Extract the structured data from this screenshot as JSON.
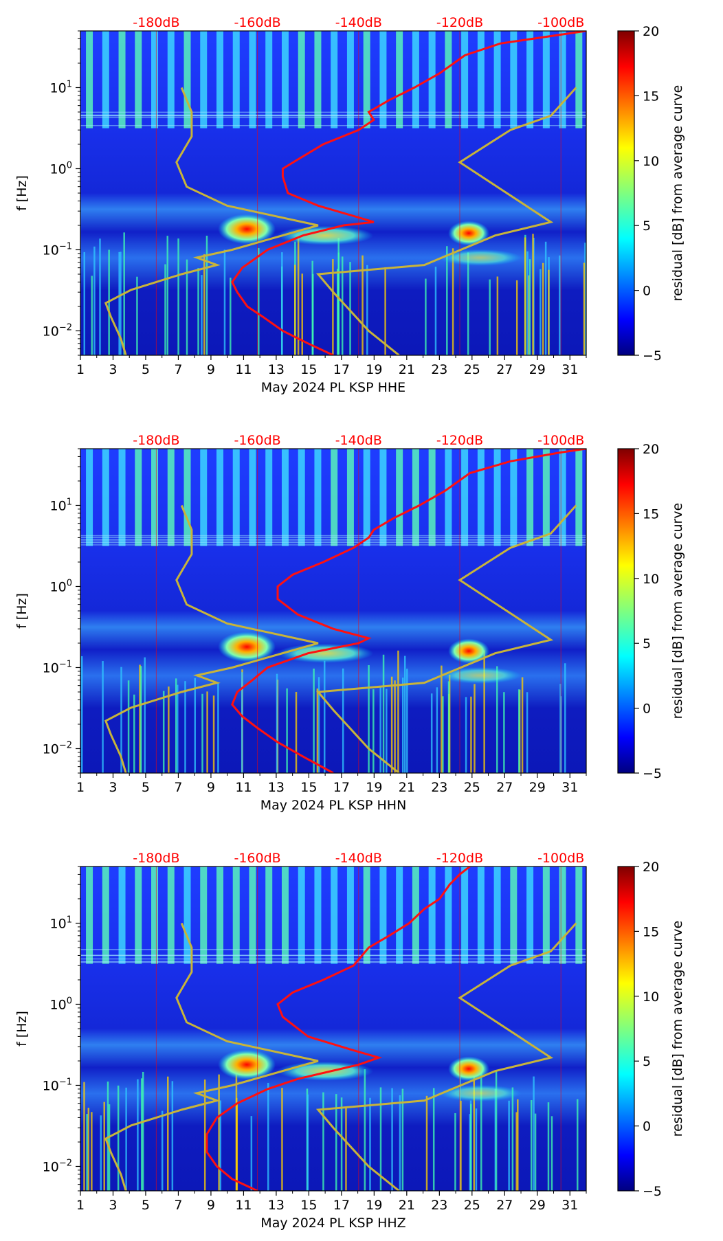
{
  "colors": {
    "reference_dB_scale": "#ff0000",
    "noise_model_lines": "#c8b43a",
    "psd_curve": "#ff1010",
    "colormap": [
      "#00007f",
      "#0000ff",
      "#007fff",
      "#00ffff",
      "#7fff7f",
      "#ffff00",
      "#ff7f00",
      "#ff0000",
      "#7f0000"
    ]
  },
  "shared": {
    "x_ticks": [
      "1",
      "3",
      "5",
      "7",
      "9",
      "11",
      "13",
      "15",
      "17",
      "19",
      "21",
      "23",
      "25",
      "27",
      "29",
      "31"
    ],
    "x_tick_days": [
      1,
      3,
      5,
      7,
      9,
      11,
      13,
      15,
      17,
      19,
      21,
      23,
      25,
      27,
      29,
      31
    ],
    "x_range_days": [
      1,
      32
    ],
    "y_range_hz": [
      0.005,
      50
    ],
    "y_tick_values": [
      0.01,
      0.1,
      1,
      10
    ],
    "db_scale_labels": [
      "-180dB",
      "-160dB",
      "-140dB",
      "-120dB",
      "-100dB"
    ],
    "db_scale_values": [
      -180,
      -160,
      -140,
      -120,
      -100
    ],
    "db_scale_range": [
      -195,
      -95
    ],
    "colorbar_ticks": [
      "20",
      "15",
      "10",
      "5",
      "0",
      "−5"
    ],
    "colorbar_tick_values": [
      20,
      15,
      10,
      5,
      0,
      -5
    ],
    "colorbar_range": [
      -5,
      20
    ],
    "colorbar_label": "residual [dB] from average curve",
    "ylabel": "f [Hz]"
  },
  "chart_data": [
    {
      "type": "heatmap",
      "title": "",
      "xlabel": "May 2024 PL KSP  HHE",
      "ylabel": "f [Hz]",
      "psd_curve": {
        "name": "average PSD (dB)",
        "points_db_hz": [
          [
            -145,
            0.005
          ],
          [
            -150,
            0.007
          ],
          [
            -155,
            0.01
          ],
          [
            -159,
            0.015
          ],
          [
            -162,
            0.02
          ],
          [
            -164,
            0.03
          ],
          [
            -165,
            0.04
          ],
          [
            -163,
            0.06
          ],
          [
            -158,
            0.1
          ],
          [
            -151,
            0.15
          ],
          [
            -143,
            0.2
          ],
          [
            -137,
            0.22
          ],
          [
            -140,
            0.25
          ],
          [
            -148,
            0.35
          ],
          [
            -154,
            0.5
          ],
          [
            -155,
            0.8
          ],
          [
            -155,
            1.0
          ],
          [
            -152,
            1.3
          ],
          [
            -147,
            2
          ],
          [
            -140,
            3
          ],
          [
            -137,
            4
          ],
          [
            -138,
            5
          ],
          [
            -134,
            7
          ],
          [
            -129,
            10
          ],
          [
            -124,
            15
          ],
          [
            -119,
            25
          ],
          [
            -112,
            35
          ],
          [
            -100,
            45
          ],
          [
            -95,
            50
          ]
        ]
      },
      "noise_model_curves": [
        {
          "name": "low noise model",
          "points_db_hz": [
            [
              -186,
              0.005
            ],
            [
              -187,
              0.008
            ],
            [
              -189,
              0.015
            ],
            [
              -190,
              0.022
            ],
            [
              -185,
              0.032
            ],
            [
              -175,
              0.05
            ],
            [
              -168,
              0.065
            ],
            [
              -172,
              0.08
            ],
            [
              -165,
              0.1
            ],
            [
              -148,
              0.2
            ],
            [
              -166,
              0.35
            ],
            [
              -174,
              0.6
            ],
            [
              -176,
              1.2
            ],
            [
              -173,
              2.5
            ],
            [
              -173,
              5
            ],
            [
              -175,
              10
            ]
          ]
        },
        {
          "name": "high noise model",
          "points_db_hz": [
            [
              -132,
              0.005
            ],
            [
              -138,
              0.01
            ],
            [
              -145,
              0.03
            ],
            [
              -148,
              0.05
            ],
            [
              -127,
              0.065
            ],
            [
              -113,
              0.15
            ],
            [
              -102,
              0.22
            ],
            [
              -120,
              1.2
            ],
            [
              -110,
              3
            ],
            [
              -102,
              4.5
            ],
            [
              -97,
              10
            ]
          ]
        }
      ]
    },
    {
      "type": "heatmap",
      "title": "",
      "xlabel": "May 2024 PL KSP  HHN",
      "ylabel": "f [Hz]",
      "psd_curve": {
        "name": "average PSD (dB)",
        "points_db_hz": [
          [
            -145,
            0.005
          ],
          [
            -151,
            0.008
          ],
          [
            -156,
            0.012
          ],
          [
            -160,
            0.018
          ],
          [
            -163,
            0.025
          ],
          [
            -165,
            0.035
          ],
          [
            -164,
            0.05
          ],
          [
            -161,
            0.07
          ],
          [
            -158,
            0.1
          ],
          [
            -150,
            0.15
          ],
          [
            -140,
            0.2
          ],
          [
            -138,
            0.23
          ],
          [
            -145,
            0.3
          ],
          [
            -152,
            0.45
          ],
          [
            -156,
            0.7
          ],
          [
            -156,
            1.0
          ],
          [
            -153,
            1.4
          ],
          [
            -147,
            2
          ],
          [
            -141,
            3
          ],
          [
            -138,
            4
          ],
          [
            -137,
            5
          ],
          [
            -133,
            7
          ],
          [
            -128,
            10
          ],
          [
            -123,
            15
          ],
          [
            -118,
            25
          ],
          [
            -110,
            35
          ],
          [
            -100,
            45
          ],
          [
            -95,
            50
          ]
        ]
      },
      "noise_model_curves": [
        {
          "name": "low noise model",
          "points_db_hz": [
            [
              -186,
              0.005
            ],
            [
              -187,
              0.008
            ],
            [
              -189,
              0.015
            ],
            [
              -190,
              0.022
            ],
            [
              -185,
              0.032
            ],
            [
              -175,
              0.05
            ],
            [
              -168,
              0.065
            ],
            [
              -172,
              0.08
            ],
            [
              -165,
              0.1
            ],
            [
              -148,
              0.2
            ],
            [
              -166,
              0.35
            ],
            [
              -174,
              0.6
            ],
            [
              -176,
              1.2
            ],
            [
              -173,
              2.5
            ],
            [
              -173,
              5
            ],
            [
              -175,
              10
            ]
          ]
        },
        {
          "name": "high noise model",
          "points_db_hz": [
            [
              -132,
              0.005
            ],
            [
              -138,
              0.01
            ],
            [
              -145,
              0.03
            ],
            [
              -148,
              0.05
            ],
            [
              -127,
              0.065
            ],
            [
              -113,
              0.15
            ],
            [
              -102,
              0.22
            ],
            [
              -120,
              1.2
            ],
            [
              -110,
              3
            ],
            [
              -102,
              4.5
            ],
            [
              -97,
              10
            ]
          ]
        }
      ]
    },
    {
      "type": "heatmap",
      "title": "",
      "xlabel": "May 2024 PL KSP  HHZ",
      "ylabel": "f [Hz]",
      "psd_curve": {
        "name": "average PSD (dB)",
        "points_db_hz": [
          [
            -160,
            0.005
          ],
          [
            -165,
            0.007
          ],
          [
            -168,
            0.01
          ],
          [
            -170,
            0.015
          ],
          [
            -170,
            0.025
          ],
          [
            -168,
            0.04
          ],
          [
            -164,
            0.06
          ],
          [
            -158,
            0.09
          ],
          [
            -152,
            0.12
          ],
          [
            -140,
            0.18
          ],
          [
            -136,
            0.22
          ],
          [
            -141,
            0.27
          ],
          [
            -150,
            0.4
          ],
          [
            -155,
            0.7
          ],
          [
            -156,
            1.0
          ],
          [
            -153,
            1.4
          ],
          [
            -147,
            2
          ],
          [
            -141,
            3
          ],
          [
            -138,
            5
          ],
          [
            -134,
            7
          ],
          [
            -130,
            10
          ],
          [
            -127,
            15
          ],
          [
            -124,
            20
          ],
          [
            -122,
            30
          ],
          [
            -120,
            40
          ],
          [
            -118,
            50
          ]
        ]
      },
      "noise_model_curves": [
        {
          "name": "low noise model",
          "points_db_hz": [
            [
              -186,
              0.005
            ],
            [
              -187,
              0.008
            ],
            [
              -189,
              0.015
            ],
            [
              -190,
              0.022
            ],
            [
              -185,
              0.032
            ],
            [
              -175,
              0.05
            ],
            [
              -168,
              0.065
            ],
            [
              -172,
              0.08
            ],
            [
              -165,
              0.1
            ],
            [
              -148,
              0.2
            ],
            [
              -166,
              0.35
            ],
            [
              -174,
              0.6
            ],
            [
              -176,
              1.2
            ],
            [
              -173,
              2.5
            ],
            [
              -173,
              5
            ],
            [
              -175,
              10
            ]
          ]
        },
        {
          "name": "high noise model",
          "points_db_hz": [
            [
              -132,
              0.005
            ],
            [
              -138,
              0.01
            ],
            [
              -145,
              0.03
            ],
            [
              -148,
              0.05
            ],
            [
              -127,
              0.065
            ],
            [
              -113,
              0.15
            ],
            [
              -102,
              0.22
            ],
            [
              -120,
              1.2
            ],
            [
              -110,
              3
            ],
            [
              -102,
              4.5
            ],
            [
              -97,
              10
            ]
          ]
        }
      ]
    }
  ]
}
